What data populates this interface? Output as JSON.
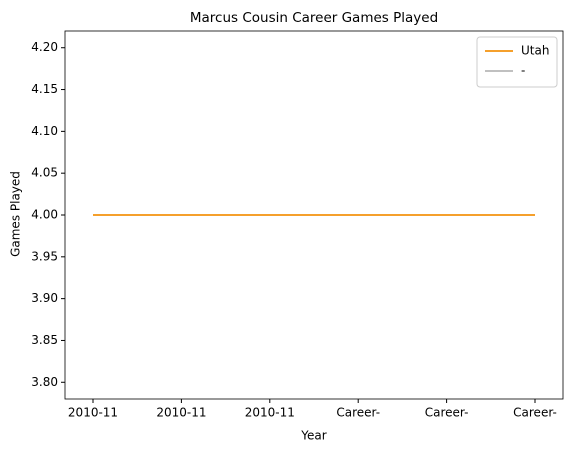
{
  "chart_data": {
    "type": "line",
    "title": "Marcus Cousin Career Games Played",
    "xlabel": "Year",
    "ylabel": "Games Played",
    "categories": [
      "2010-11",
      "2010-11",
      "2010-11",
      "Career-",
      "Career-",
      "Career-"
    ],
    "series": [
      {
        "name": "Utah",
        "color": "#f5a02c",
        "values": [
          4,
          4,
          4,
          4,
          4,
          4
        ]
      },
      {
        "name": "-",
        "color": "#c0c0c0",
        "values": [
          null,
          null,
          null,
          null,
          null,
          null
        ]
      }
    ],
    "ylim": [
      3.78,
      4.22
    ],
    "yticks": [
      {
        "value": 3.8,
        "label": "3.80"
      },
      {
        "value": 3.85,
        "label": "3.85"
      },
      {
        "value": 3.9,
        "label": "3.90"
      },
      {
        "value": 3.95,
        "label": "3.95"
      },
      {
        "value": 4.0,
        "label": "4.00"
      },
      {
        "value": 4.05,
        "label": "4.05"
      },
      {
        "value": 4.1,
        "label": "4.10"
      },
      {
        "value": 4.15,
        "label": "4.15"
      },
      {
        "value": 4.2,
        "label": "4.20"
      }
    ],
    "grid": false,
    "legend": "upper right"
  }
}
